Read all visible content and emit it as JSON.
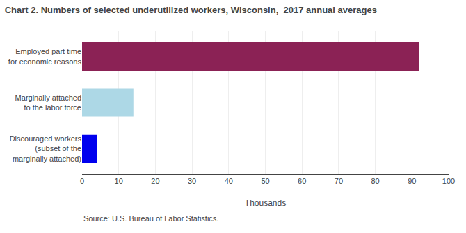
{
  "chart_data": {
    "type": "bar",
    "orientation": "horizontal",
    "title": "Chart 2. Numbers of selected underutilized workers, Wisconsin,  2017 annual averages",
    "categories": [
      "Discouraged workers\n(subset of the\nmarginally attached)",
      "Marginally attached\nto the labor force",
      "Employed part time\nfor economic reasons"
    ],
    "values": [
      4,
      14,
      92
    ],
    "colors": [
      "#0000ee",
      "#add8e6",
      "#8b2255"
    ],
    "xlabel": "Thousands",
    "xlim": [
      0,
      100
    ],
    "xticks": [
      0,
      10,
      20,
      30,
      40,
      50,
      60,
      70,
      80,
      90,
      100
    ],
    "grid": true,
    "annotations": [
      "Source: U.S. Bureau of Labor Statistics."
    ]
  }
}
